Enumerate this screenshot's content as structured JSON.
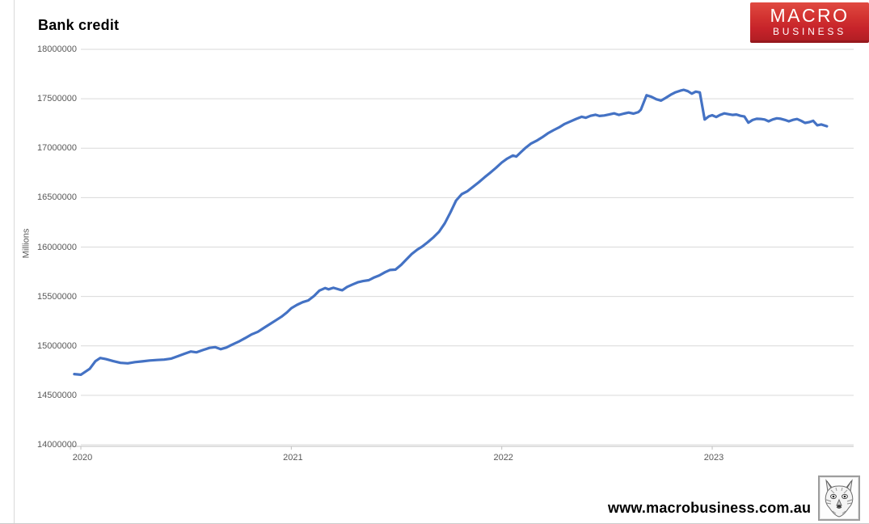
{
  "title": "Bank credit",
  "brand": {
    "line1": "MACRO",
    "line2": "BUSINESS",
    "bg_color": "#c6232a",
    "text_color": "#ffffff"
  },
  "footer": {
    "url": "www.macrobusiness.com.au"
  },
  "icons": {
    "fox": "fox-mascot-sketch"
  },
  "chart_data": {
    "type": "line",
    "title": "Bank credit",
    "xlabel": "",
    "ylabel": "Millions",
    "grid": true,
    "legend_position": "none",
    "line_color": "#4472C4",
    "grid_color": "#d9d9d9",
    "axis_color": "#bfbfbf",
    "tick_text_color": "#595959",
    "ylim": [
      14000000,
      18000000
    ],
    "y_ticks": [
      18000000,
      17500000,
      17000000,
      16500000,
      16000000,
      15500000,
      15000000,
      14500000,
      14000000
    ],
    "x_ticks": [
      2020,
      2021,
      2022,
      2023
    ],
    "x_axis_range": [
      2019.95,
      2023.672
    ],
    "series": [
      {
        "name": "Bank credit",
        "points": [
          [
            2019.969,
            14715000
          ],
          [
            2020.0,
            14708000
          ],
          [
            2020.042,
            14768000
          ],
          [
            2020.069,
            14845000
          ],
          [
            2020.092,
            14878000
          ],
          [
            2020.119,
            14866000
          ],
          [
            2020.154,
            14846000
          ],
          [
            2020.188,
            14829000
          ],
          [
            2020.223,
            14824000
          ],
          [
            2020.257,
            14836000
          ],
          [
            2020.292,
            14843000
          ],
          [
            2020.327,
            14852000
          ],
          [
            2020.361,
            14857000
          ],
          [
            2020.396,
            14861000
          ],
          [
            2020.43,
            14872000
          ],
          [
            2020.461,
            14896000
          ],
          [
            2020.492,
            14920000
          ],
          [
            2020.522,
            14943000
          ],
          [
            2020.549,
            14935000
          ],
          [
            2020.58,
            14958000
          ],
          [
            2020.611,
            14980000
          ],
          [
            2020.638,
            14987000
          ],
          [
            2020.664,
            14967000
          ],
          [
            2020.691,
            14983000
          ],
          [
            2020.718,
            15012000
          ],
          [
            2020.749,
            15042000
          ],
          [
            2020.78,
            15078000
          ],
          [
            2020.81,
            15115000
          ],
          [
            2020.841,
            15143000
          ],
          [
            2020.872,
            15185000
          ],
          [
            2020.899,
            15222000
          ],
          [
            2020.926,
            15258000
          ],
          [
            2020.953,
            15295000
          ],
          [
            2020.979,
            15338000
          ],
          [
            2021.0,
            15382000
          ],
          [
            2021.027,
            15415000
          ],
          [
            2021.054,
            15442000
          ],
          [
            2021.081,
            15460000
          ],
          [
            2021.108,
            15505000
          ],
          [
            2021.134,
            15560000
          ],
          [
            2021.161,
            15585000
          ],
          [
            2021.177,
            15572000
          ],
          [
            2021.2,
            15588000
          ],
          [
            2021.226,
            15571000
          ],
          [
            2021.242,
            15563000
          ],
          [
            2021.265,
            15597000
          ],
          [
            2021.292,
            15622000
          ],
          [
            2021.318,
            15645000
          ],
          [
            2021.341,
            15656000
          ],
          [
            2021.368,
            15665000
          ],
          [
            2021.391,
            15690000
          ],
          [
            2021.418,
            15713000
          ],
          [
            2021.445,
            15745000
          ],
          [
            2021.468,
            15768000
          ],
          [
            2021.495,
            15772000
          ],
          [
            2021.522,
            15820000
          ],
          [
            2021.545,
            15870000
          ],
          [
            2021.572,
            15930000
          ],
          [
            2021.599,
            15975000
          ],
          [
            2021.622,
            16005000
          ],
          [
            2021.649,
            16050000
          ],
          [
            2021.676,
            16100000
          ],
          [
            2021.702,
            16155000
          ],
          [
            2021.729,
            16240000
          ],
          [
            2021.756,
            16350000
          ],
          [
            2021.783,
            16470000
          ],
          [
            2021.81,
            16535000
          ],
          [
            2021.837,
            16565000
          ],
          [
            2021.864,
            16610000
          ],
          [
            2021.891,
            16655000
          ],
          [
            2021.918,
            16705000
          ],
          [
            2021.945,
            16752000
          ],
          [
            2021.972,
            16800000
          ],
          [
            2022.0,
            16855000
          ],
          [
            2022.026,
            16895000
          ],
          [
            2022.053,
            16926000
          ],
          [
            2022.069,
            16915000
          ],
          [
            2022.092,
            16962000
          ],
          [
            2022.111,
            17000000
          ],
          [
            2022.138,
            17045000
          ],
          [
            2022.165,
            17075000
          ],
          [
            2022.192,
            17110000
          ],
          [
            2022.219,
            17150000
          ],
          [
            2022.246,
            17182000
          ],
          [
            2022.272,
            17210000
          ],
          [
            2022.299,
            17245000
          ],
          [
            2022.326,
            17270000
          ],
          [
            2022.353,
            17296000
          ],
          [
            2022.38,
            17318000
          ],
          [
            2022.399,
            17308000
          ],
          [
            2022.422,
            17328000
          ],
          [
            2022.445,
            17338000
          ],
          [
            2022.464,
            17326000
          ],
          [
            2022.487,
            17331000
          ],
          [
            2022.51,
            17341000
          ],
          [
            2022.534,
            17352000
          ],
          [
            2022.557,
            17337000
          ],
          [
            2022.58,
            17350000
          ],
          [
            2022.603,
            17360000
          ],
          [
            2022.626,
            17350000
          ],
          [
            2022.649,
            17365000
          ],
          [
            2022.661,
            17390000
          ],
          [
            2022.688,
            17535000
          ],
          [
            2022.711,
            17520000
          ],
          [
            2022.734,
            17495000
          ],
          [
            2022.757,
            17481000
          ],
          [
            2022.78,
            17510000
          ],
          [
            2022.803,
            17541000
          ],
          [
            2022.826,
            17566000
          ],
          [
            2022.849,
            17582000
          ],
          [
            2022.865,
            17590000
          ],
          [
            2022.884,
            17577000
          ],
          [
            2022.903,
            17552000
          ],
          [
            2022.922,
            17572000
          ],
          [
            2022.941,
            17564000
          ],
          [
            2022.964,
            17290000
          ],
          [
            2022.984,
            17322000
          ],
          [
            2023.0,
            17333000
          ],
          [
            2023.019,
            17315000
          ],
          [
            2023.038,
            17337000
          ],
          [
            2023.057,
            17352000
          ],
          [
            2023.077,
            17344000
          ],
          [
            2023.096,
            17337000
          ],
          [
            2023.115,
            17341000
          ],
          [
            2023.134,
            17328000
          ],
          [
            2023.153,
            17320000
          ],
          [
            2023.172,
            17258000
          ],
          [
            2023.192,
            17285000
          ],
          [
            2023.211,
            17297000
          ],
          [
            2023.23,
            17296000
          ],
          [
            2023.249,
            17290000
          ],
          [
            2023.268,
            17272000
          ],
          [
            2023.288,
            17291000
          ],
          [
            2023.307,
            17302000
          ],
          [
            2023.326,
            17297000
          ],
          [
            2023.345,
            17286000
          ],
          [
            2023.364,
            17272000
          ],
          [
            2023.384,
            17287000
          ],
          [
            2023.403,
            17295000
          ],
          [
            2023.422,
            17278000
          ],
          [
            2023.441,
            17256000
          ],
          [
            2023.46,
            17263000
          ],
          [
            2023.48,
            17277000
          ],
          [
            2023.499,
            17232000
          ],
          [
            2023.518,
            17240000
          ],
          [
            2023.545,
            17222000
          ]
        ]
      }
    ]
  }
}
